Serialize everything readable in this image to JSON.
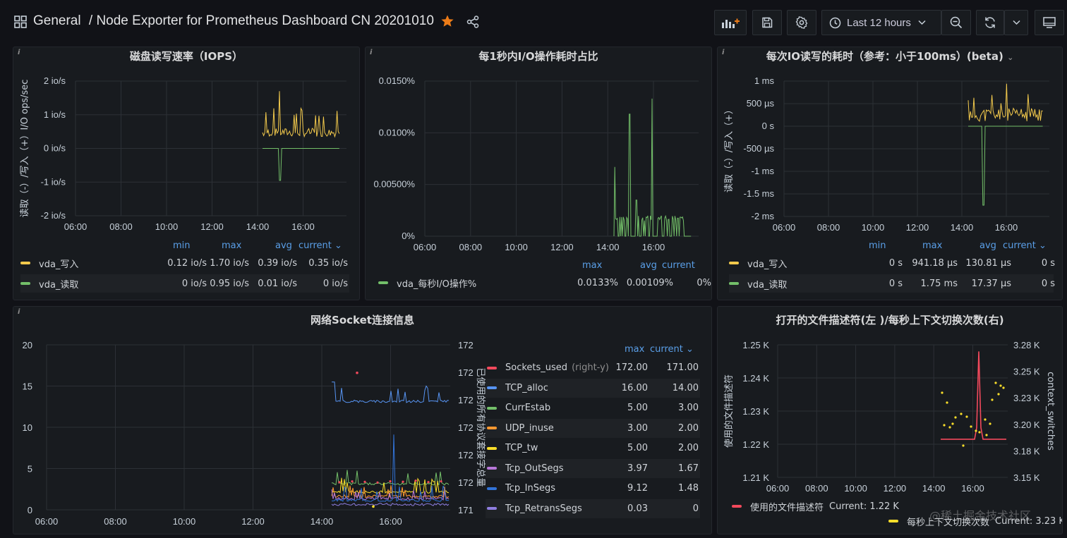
{
  "header": {
    "folder": "General",
    "title": "/ Node Exporter for Prometheus Dashboard CN 20201010",
    "time_range": "Last 12 hours"
  },
  "colors": {
    "yellow": "#f2c94c",
    "green": "#73bf69",
    "red": "#f2495c",
    "blue": "#5794f2",
    "orange": "#ff9830",
    "purple": "#b877d9",
    "violet": "#8f7ee0",
    "gold": "#fade2a",
    "star": "#eb7b18"
  },
  "panels": {
    "iops": {
      "title": "磁盘读写速率（IOPS）",
      "ylabel": "读取（-）/写入（+）I/O ops/sec",
      "yticks": [
        "2 io/s",
        "1 io/s",
        "0 io/s",
        "-1 io/s",
        "-2 io/s"
      ],
      "xticks": [
        "06:00",
        "08:00",
        "10:00",
        "12:00",
        "14:00",
        "16:00"
      ],
      "legend_headers": [
        "min",
        "max",
        "avg",
        "current"
      ],
      "legend": [
        {
          "name": "vda_写入",
          "min": "0.12 io/s",
          "max": "1.70 io/s",
          "avg": "0.39 io/s",
          "current": "0.35 io/s"
        },
        {
          "name": "vda_读取",
          "min": "0 io/s",
          "max": "0.95 io/s",
          "avg": "0.01 io/s",
          "current": "0 io/s"
        }
      ]
    },
    "io_time": {
      "title": "每1秒内I/O操作耗时占比",
      "yticks": [
        "0.0150%",
        "0.0100%",
        "0.00500%",
        "0%"
      ],
      "xticks": [
        "06:00",
        "08:00",
        "10:00",
        "12:00",
        "14:00",
        "16:00"
      ],
      "legend_headers": [
        "max",
        "avg",
        "current"
      ],
      "legend": [
        {
          "name": "vda_每秒I/O操作%",
          "max": "0.0133%",
          "avg": "0.00109%",
          "current": "0%"
        }
      ]
    },
    "io_latency": {
      "title": "每次IO读写的耗时（参考：小于100ms）(beta)",
      "ylabel": "读取（-）/写入（+）",
      "yticks": [
        "1 ms",
        "500 µs",
        "0 s",
        "-500 µs",
        "-1 ms",
        "-1.5 ms",
        "-2 ms"
      ],
      "xticks": [
        "06:00",
        "08:00",
        "10:00",
        "12:00",
        "14:00",
        "16:00"
      ],
      "legend_headers": [
        "min",
        "max",
        "avg",
        "current"
      ],
      "legend": [
        {
          "name": "vda_写入",
          "min": "0 s",
          "max": "941.18 µs",
          "avg": "130.81 µs",
          "current": "0 s"
        },
        {
          "name": "vda_读取",
          "min": "0 s",
          "max": "1.75 ms",
          "avg": "17.37 µs",
          "current": "0 s"
        }
      ]
    },
    "socket": {
      "title": "网络Socket连接信息",
      "ylabel_right": "已使用的所有协议套接字总量",
      "yticks": [
        "20",
        "15",
        "10",
        "5",
        "0"
      ],
      "yticks_right": [
        "172",
        "172",
        "172",
        "172",
        "172",
        "172",
        "171"
      ],
      "xticks": [
        "06:00",
        "08:00",
        "10:00",
        "12:00",
        "14:00",
        "16:00"
      ],
      "legend_headers": [
        "max",
        "current"
      ],
      "legend": [
        {
          "name": "Sockets_used",
          "note": "(right-y)",
          "max": "172.00",
          "current": "171.00",
          "color": "#f2495c"
        },
        {
          "name": "TCP_alloc",
          "note": "",
          "max": "16.00",
          "current": "14.00",
          "color": "#5794f2"
        },
        {
          "name": "CurrEstab",
          "note": "",
          "max": "5.00",
          "current": "3.00",
          "color": "#73bf69"
        },
        {
          "name": "UDP_inuse",
          "note": "",
          "max": "3.00",
          "current": "2.00",
          "color": "#ff9830"
        },
        {
          "name": "TCP_tw",
          "note": "",
          "max": "5.00",
          "current": "2.00",
          "color": "#fade2a"
        },
        {
          "name": "Tcp_OutSegs",
          "note": "",
          "max": "3.97",
          "current": "1.67",
          "color": "#b877d9"
        },
        {
          "name": "Tcp_InSegs",
          "note": "",
          "max": "9.12",
          "current": "1.48",
          "color": "#3274d9"
        },
        {
          "name": "Tcp_RetransSegs",
          "note": "",
          "max": "0.03",
          "current": "0",
          "color": "#8f7ee0"
        }
      ]
    },
    "fd": {
      "title": "打开的文件描述符(左 )/每秒上下文切换次数(右)",
      "ylabel": "使用的文件描述符",
      "ylabel_right": "context_switches",
      "yticks": [
        "1.25 K",
        "1.24 K",
        "1.23 K",
        "1.22 K",
        "1.21 K"
      ],
      "yticks_right": [
        "3.28 K",
        "3.25 K",
        "3.23 K",
        "3.20 K",
        "3.18 K",
        "3.15 K"
      ],
      "xticks": [
        "06:00",
        "08:00",
        "10:00",
        "12:00",
        "14:00",
        "16:00"
      ],
      "legend": [
        {
          "name": "使用的文件描述符",
          "current": "Current: 1.22 K"
        },
        {
          "name": "每秒上下文切换次数",
          "current": "Current: 3.23 K"
        }
      ]
    }
  },
  "watermark": "@稀土掘金技术社区"
}
